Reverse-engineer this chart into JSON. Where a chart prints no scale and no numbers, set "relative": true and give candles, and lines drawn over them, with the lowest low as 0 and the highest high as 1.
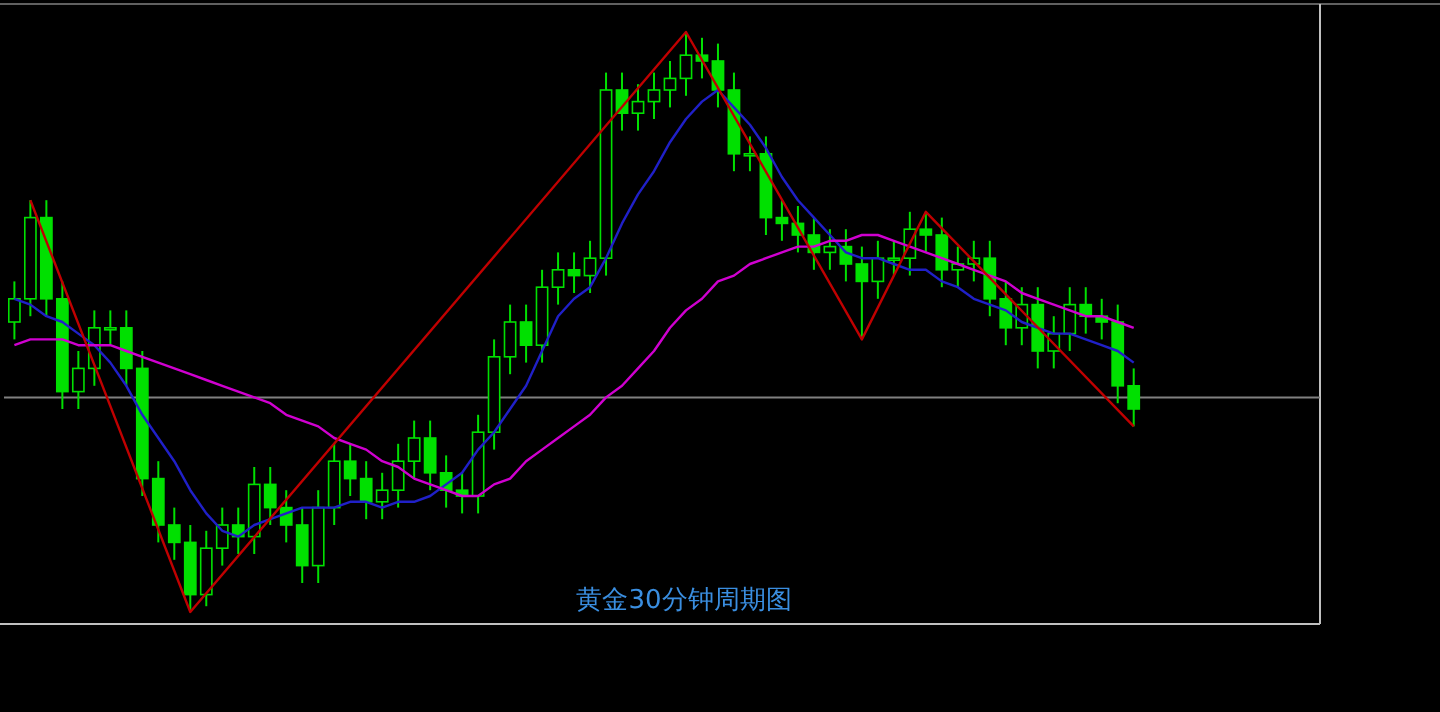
{
  "chart_data": {
    "type": "candlestick",
    "relative": true,
    "color": "#00e000",
    "categories": [
      null,
      null,
      null,
      null,
      null,
      null,
      null,
      null,
      null,
      null,
      null,
      null,
      null,
      null,
      null,
      null,
      null,
      null,
      null,
      null,
      null,
      null,
      null,
      null,
      null,
      null,
      null,
      null,
      null,
      null,
      null,
      null,
      null,
      null,
      null,
      null,
      null,
      null,
      null,
      null,
      null,
      null,
      null,
      null,
      null,
      null,
      null,
      null,
      null,
      null,
      null,
      null,
      null,
      null,
      null,
      null,
      null,
      null,
      null,
      null,
      null,
      null,
      null,
      null,
      null,
      null,
      null,
      null,
      null,
      null,
      null,
      null,
      null,
      null,
      null,
      null,
      null,
      null,
      null,
      null,
      null,
      null
    ],
    "ohlc": [
      [
        0.5,
        0.57,
        0.47,
        0.54
      ],
      [
        0.54,
        0.71,
        0.51,
        0.68
      ],
      [
        0.68,
        0.71,
        0.51,
        0.54
      ],
      [
        0.54,
        0.57,
        0.35,
        0.38
      ],
      [
        0.38,
        0.45,
        0.35,
        0.42
      ],
      [
        0.42,
        0.52,
        0.39,
        0.49
      ],
      [
        0.49,
        0.52,
        0.46,
        0.49
      ],
      [
        0.49,
        0.52,
        0.39,
        0.42
      ],
      [
        0.42,
        0.45,
        0.2,
        0.23
      ],
      [
        0.23,
        0.26,
        0.12,
        0.15
      ],
      [
        0.15,
        0.18,
        0.09,
        0.12
      ],
      [
        0.12,
        0.15,
        0.0,
        0.03
      ],
      [
        0.03,
        0.14,
        0.01,
        0.11
      ],
      [
        0.11,
        0.18,
        0.08,
        0.15
      ],
      [
        0.15,
        0.18,
        0.1,
        0.13
      ],
      [
        0.13,
        0.25,
        0.1,
        0.22
      ],
      [
        0.22,
        0.25,
        0.15,
        0.18
      ],
      [
        0.18,
        0.21,
        0.12,
        0.15
      ],
      [
        0.15,
        0.18,
        0.05,
        0.08
      ],
      [
        0.08,
        0.21,
        0.05,
        0.18
      ],
      [
        0.18,
        0.29,
        0.15,
        0.26
      ],
      [
        0.26,
        0.29,
        0.2,
        0.23
      ],
      [
        0.23,
        0.26,
        0.16,
        0.19
      ],
      [
        0.19,
        0.24,
        0.16,
        0.21
      ],
      [
        0.21,
        0.29,
        0.18,
        0.26
      ],
      [
        0.26,
        0.33,
        0.23,
        0.3
      ],
      [
        0.3,
        0.33,
        0.21,
        0.24
      ],
      [
        0.24,
        0.27,
        0.18,
        0.21
      ],
      [
        0.21,
        0.24,
        0.17,
        0.2
      ],
      [
        0.2,
        0.34,
        0.17,
        0.31
      ],
      [
        0.31,
        0.47,
        0.28,
        0.44
      ],
      [
        0.44,
        0.53,
        0.41,
        0.5
      ],
      [
        0.5,
        0.53,
        0.43,
        0.46
      ],
      [
        0.46,
        0.59,
        0.43,
        0.56
      ],
      [
        0.56,
        0.62,
        0.53,
        0.59
      ],
      [
        0.59,
        0.62,
        0.55,
        0.58
      ],
      [
        0.58,
        0.64,
        0.55,
        0.61
      ],
      [
        0.61,
        0.93,
        0.58,
        0.9
      ],
      [
        0.9,
        0.93,
        0.83,
        0.86
      ],
      [
        0.86,
        0.91,
        0.83,
        0.88
      ],
      [
        0.88,
        0.93,
        0.85,
        0.9
      ],
      [
        0.9,
        0.95,
        0.87,
        0.92
      ],
      [
        0.92,
        1.0,
        0.89,
        0.96
      ],
      [
        0.96,
        0.99,
        0.92,
        0.95
      ],
      [
        0.95,
        0.98,
        0.87,
        0.9
      ],
      [
        0.9,
        0.93,
        0.76,
        0.79
      ],
      [
        0.79,
        0.82,
        0.76,
        0.79
      ],
      [
        0.79,
        0.82,
        0.65,
        0.68
      ],
      [
        0.68,
        0.71,
        0.64,
        0.67
      ],
      [
        0.67,
        0.7,
        0.62,
        0.65
      ],
      [
        0.65,
        0.68,
        0.59,
        0.62
      ],
      [
        0.62,
        0.66,
        0.59,
        0.63
      ],
      [
        0.63,
        0.66,
        0.57,
        0.6
      ],
      [
        0.6,
        0.63,
        0.47,
        0.57
      ],
      [
        0.57,
        0.64,
        0.54,
        0.61
      ],
      [
        0.61,
        0.64,
        0.58,
        0.61
      ],
      [
        0.61,
        0.69,
        0.58,
        0.66
      ],
      [
        0.66,
        0.69,
        0.62,
        0.65
      ],
      [
        0.65,
        0.68,
        0.56,
        0.59
      ],
      [
        0.59,
        0.63,
        0.56,
        0.6
      ],
      [
        0.6,
        0.64,
        0.57,
        0.61
      ],
      [
        0.61,
        0.64,
        0.51,
        0.54
      ],
      [
        0.54,
        0.57,
        0.46,
        0.49
      ],
      [
        0.49,
        0.56,
        0.46,
        0.53
      ],
      [
        0.53,
        0.56,
        0.42,
        0.45
      ],
      [
        0.45,
        0.51,
        0.42,
        0.48
      ],
      [
        0.48,
        0.56,
        0.45,
        0.53
      ],
      [
        0.53,
        0.56,
        0.48,
        0.51
      ],
      [
        0.51,
        0.54,
        0.47,
        0.5
      ],
      [
        0.5,
        0.53,
        0.36,
        0.39
      ],
      [
        0.39,
        0.42,
        0.32,
        0.35
      ],
      null,
      null,
      null,
      null,
      null,
      null,
      null,
      null,
      null,
      null,
      null
    ],
    "series": [
      {
        "type": "line",
        "color": "#2020c8",
        "values": [
          0.54,
          0.53,
          0.51,
          0.5,
          0.48,
          0.46,
          0.43,
          0.39,
          0.34,
          0.3,
          0.26,
          0.21,
          0.17,
          0.14,
          0.13,
          0.15,
          0.16,
          0.17,
          0.18,
          0.18,
          0.18,
          0.19,
          0.19,
          0.18,
          0.19,
          0.19,
          0.2,
          0.22,
          0.24,
          0.28,
          0.31,
          0.35,
          0.39,
          0.45,
          0.51,
          0.54,
          0.56,
          0.61,
          0.67,
          0.72,
          0.76,
          0.81,
          0.85,
          0.88,
          0.9,
          0.87,
          0.84,
          0.8,
          0.75,
          0.71,
          0.68,
          0.65,
          0.62,
          0.61,
          0.61,
          0.6,
          0.59,
          0.59,
          0.57,
          0.56,
          0.54,
          0.53,
          0.52,
          0.5,
          0.49,
          0.48,
          0.48,
          0.47,
          0.46,
          0.45,
          0.43,
          null,
          null,
          null,
          null,
          null,
          null,
          null,
          null,
          null,
          null,
          null
        ]
      },
      {
        "type": "line",
        "color": "#d000d0",
        "values": [
          0.46,
          0.47,
          0.47,
          0.47,
          0.46,
          0.46,
          0.46,
          0.45,
          0.44,
          0.43,
          0.42,
          0.41,
          0.4,
          0.39,
          0.38,
          0.37,
          0.36,
          0.34,
          0.33,
          0.32,
          0.3,
          0.29,
          0.28,
          0.26,
          0.25,
          0.23,
          0.22,
          0.21,
          0.2,
          0.2,
          0.22,
          0.23,
          0.26,
          0.28,
          0.3,
          0.32,
          0.34,
          0.37,
          0.39,
          0.42,
          0.45,
          0.49,
          0.52,
          0.54,
          0.57,
          0.58,
          0.6,
          0.61,
          0.62,
          0.63,
          0.63,
          0.64,
          0.64,
          0.65,
          0.65,
          0.64,
          0.63,
          0.62,
          0.61,
          0.6,
          0.59,
          0.58,
          0.57,
          0.55,
          0.54,
          0.53,
          0.52,
          0.51,
          0.51,
          0.5,
          0.49,
          null,
          null,
          null,
          null,
          null,
          null,
          null,
          null,
          null,
          null,
          null
        ]
      },
      {
        "type": "line",
        "color": "#c00000",
        "values": [
          null,
          0.71,
          null,
          null,
          null,
          null,
          null,
          null,
          null,
          null,
          null,
          0.0,
          null,
          null,
          null,
          null,
          null,
          null,
          null,
          null,
          null,
          null,
          null,
          null,
          null,
          null,
          null,
          null,
          null,
          null,
          null,
          null,
          null,
          null,
          null,
          null,
          null,
          null,
          null,
          null,
          null,
          null,
          1.0,
          null,
          null,
          null,
          null,
          null,
          null,
          null,
          null,
          null,
          null,
          0.47,
          null,
          null,
          null,
          0.69,
          null,
          null,
          null,
          null,
          null,
          null,
          null,
          null,
          null,
          null,
          null,
          null,
          0.32,
          null,
          null,
          null,
          null,
          null,
          null,
          null,
          null,
          null,
          null,
          null
        ]
      }
    ],
    "ref_lines": [
      {
        "axis": "y",
        "value": 0.37,
        "color": "#808080"
      }
    ],
    "annotations": [
      "黄金30分钟周期图"
    ]
  }
}
